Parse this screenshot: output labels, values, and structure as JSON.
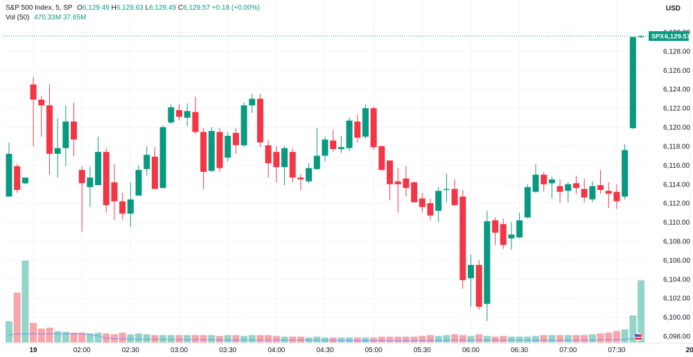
{
  "legend": {
    "symbol": "S&P 500 Index, 5, SP",
    "o_label": "O",
    "o_value": "6,129.49",
    "h_label": "H",
    "h_value": "6,129.63",
    "l_label": "L",
    "l_value": "6,129.49",
    "c_label": "C",
    "c_value": "6,129.57",
    "change": "+0.18 (+0.00%)",
    "vol_label": "Vol (50)",
    "vol_value": "470.33M",
    "vol_ma": "37.65M"
  },
  "currency": "USD",
  "last_price": {
    "symbol": "SPX",
    "value": "6,129.57"
  },
  "colors": {
    "up": "#089981",
    "down": "#f23645",
    "vol_up": "#94d5c9",
    "vol_down": "#f7a6ab",
    "grid": "#f0f3fa",
    "axis_text": "#131722"
  },
  "chart_data": {
    "type": "candlestick",
    "title": "S&P 500 Index, 5, SP",
    "ylim": [
      6096,
      6131
    ],
    "yticks": [
      6098,
      6100,
      6102,
      6104,
      6106,
      6108,
      6110,
      6112,
      6114,
      6116,
      6118,
      6120,
      6122,
      6124,
      6126,
      6128,
      6130
    ],
    "ytick_labels": [
      "6,098.00",
      "6,100.00",
      "6,102.00",
      "6,104.00",
      "6,106.00",
      "6,108.00",
      "6,110.00",
      "6,112.00",
      "6,114.00",
      "6,116.00",
      "6,118.00",
      "6,120.00",
      "6,122.00",
      "6,124.00",
      "6,126.00",
      "6,128.00",
      "6,130.00"
    ],
    "xtick_labels": [
      {
        "bar": 3,
        "label": "19"
      },
      {
        "bar": 9,
        "label": "02:00"
      },
      {
        "bar": 15,
        "label": "02:30"
      },
      {
        "bar": 21,
        "label": "03:00"
      },
      {
        "bar": 27,
        "label": "03:30"
      },
      {
        "bar": 33,
        "label": "04:00"
      },
      {
        "bar": 39,
        "label": "04:30"
      },
      {
        "bar": 45,
        "label": "05:00"
      },
      {
        "bar": 51,
        "label": "05:30"
      },
      {
        "bar": 57,
        "label": "06:00"
      },
      {
        "bar": 63,
        "label": "06:30"
      },
      {
        "bar": 69,
        "label": "07:00"
      },
      {
        "bar": 75,
        "label": "07:30"
      },
      {
        "bar": 84,
        "label": "20"
      }
    ],
    "volume_label": "Vol (50)",
    "series": [
      {
        "o": 6112.7,
        "h": 6118.4,
        "l": 6112.7,
        "c": 6117.2,
        "v": 0.26
      },
      {
        "o": 6115.9,
        "h": 6116.1,
        "l": 6113.1,
        "c": 6113.4,
        "v": 0.61
      },
      {
        "o": 6114.1,
        "h": 6114.7,
        "l": 6114.0,
        "c": 6114.7,
        "v": 1.0
      },
      {
        "o": 6124.5,
        "h": 6125.3,
        "l": 6118.0,
        "c": 6122.9,
        "v": 0.24
      },
      {
        "o": 6122.9,
        "h": 6123.3,
        "l": 6119.0,
        "c": 6122.3,
        "v": 0.17
      },
      {
        "o": 6122.3,
        "h": 6124.5,
        "l": 6115.0,
        "c": 6117.2,
        "v": 0.18
      },
      {
        "o": 6117.2,
        "h": 6120.9,
        "l": 6114.7,
        "c": 6117.8,
        "v": 0.14
      },
      {
        "o": 6117.8,
        "h": 6122.3,
        "l": 6115.9,
        "c": 6120.6,
        "v": 0.13
      },
      {
        "o": 6120.6,
        "h": 6122.6,
        "l": 6117.0,
        "c": 6118.7,
        "v": 0.12
      },
      {
        "o": 6115.5,
        "h": 6115.9,
        "l": 6109.0,
        "c": 6114.1,
        "v": 0.12
      },
      {
        "o": 6113.7,
        "h": 6115.9,
        "l": 6111.6,
        "c": 6114.7,
        "v": 0.11
      },
      {
        "o": 6113.9,
        "h": 6119.0,
        "l": 6113.9,
        "c": 6117.4,
        "v": 0.12
      },
      {
        "o": 6117.4,
        "h": 6117.8,
        "l": 6111.0,
        "c": 6111.8,
        "v": 0.11
      },
      {
        "o": 6114.2,
        "h": 6116.1,
        "l": 6110.2,
        "c": 6112.2,
        "v": 0.1
      },
      {
        "o": 6112.2,
        "h": 6113.1,
        "l": 6110.3,
        "c": 6110.9,
        "v": 0.12
      },
      {
        "o": 6110.9,
        "h": 6114.2,
        "l": 6109.5,
        "c": 6112.4,
        "v": 0.1
      },
      {
        "o": 6112.8,
        "h": 6116.0,
        "l": 6112.8,
        "c": 6115.5,
        "v": 0.11
      },
      {
        "o": 6115.6,
        "h": 6118.0,
        "l": 6114.9,
        "c": 6117.1,
        "v": 0.1
      },
      {
        "o": 6116.9,
        "h": 6117.9,
        "l": 6113.5,
        "c": 6113.5,
        "v": 0.09
      },
      {
        "o": 6113.6,
        "h": 6120.2,
        "l": 6113.6,
        "c": 6120.0,
        "v": 0.09
      },
      {
        "o": 6120.5,
        "h": 6122.4,
        "l": 6120.3,
        "c": 6122.1,
        "v": 0.09
      },
      {
        "o": 6121.8,
        "h": 6122.4,
        "l": 6120.7,
        "c": 6121.1,
        "v": 0.09
      },
      {
        "o": 6121.0,
        "h": 6122.5,
        "l": 6120.1,
        "c": 6121.7,
        "v": 0.09
      },
      {
        "o": 6121.6,
        "h": 6123.2,
        "l": 6119.3,
        "c": 6119.5,
        "v": 0.09
      },
      {
        "o": 6119.5,
        "h": 6119.9,
        "l": 6113.5,
        "c": 6115.3,
        "v": 0.09
      },
      {
        "o": 6115.4,
        "h": 6120.0,
        "l": 6115.3,
        "c": 6119.6,
        "v": 0.09
      },
      {
        "o": 6119.5,
        "h": 6119.9,
        "l": 6115.3,
        "c": 6115.7,
        "v": 0.08
      },
      {
        "o": 6116.8,
        "h": 6119.5,
        "l": 6116.4,
        "c": 6119.1,
        "v": 0.09
      },
      {
        "o": 6119.4,
        "h": 6119.9,
        "l": 6117.2,
        "c": 6118.1,
        "v": 0.09
      },
      {
        "o": 6118.1,
        "h": 6122.6,
        "l": 6117.9,
        "c": 6122.3,
        "v": 0.08
      },
      {
        "o": 6122.3,
        "h": 6123.5,
        "l": 6121.5,
        "c": 6123.0,
        "v": 0.09
      },
      {
        "o": 6123.0,
        "h": 6123.5,
        "l": 6117.9,
        "c": 6118.4,
        "v": 0.09
      },
      {
        "o": 6118.1,
        "h": 6118.7,
        "l": 6114.7,
        "c": 6116.2,
        "v": 0.09
      },
      {
        "o": 6117.4,
        "h": 6118.0,
        "l": 6114.2,
        "c": 6115.8,
        "v": 0.08
      },
      {
        "o": 6115.8,
        "h": 6118.0,
        "l": 6113.9,
        "c": 6117.8,
        "v": 0.07
      },
      {
        "o": 6117.4,
        "h": 6117.8,
        "l": 6114.2,
        "c": 6114.7,
        "v": 0.07
      },
      {
        "o": 6114.7,
        "h": 6115.1,
        "l": 6113.4,
        "c": 6114.5,
        "v": 0.07
      },
      {
        "o": 6114.3,
        "h": 6116.2,
        "l": 6114.1,
        "c": 6115.7,
        "v": 0.06
      },
      {
        "o": 6115.6,
        "h": 6119.9,
        "l": 6115.5,
        "c": 6117.0,
        "v": 0.07
      },
      {
        "o": 6117.0,
        "h": 6119.0,
        "l": 6116.4,
        "c": 6118.7,
        "v": 0.06
      },
      {
        "o": 6118.6,
        "h": 6119.7,
        "l": 6117.4,
        "c": 6117.7,
        "v": 0.06
      },
      {
        "o": 6117.7,
        "h": 6119.1,
        "l": 6117.3,
        "c": 6117.9,
        "v": 0.06
      },
      {
        "o": 6117.8,
        "h": 6121.0,
        "l": 6117.5,
        "c": 6120.7,
        "v": 0.06
      },
      {
        "o": 6120.6,
        "h": 6121.3,
        "l": 6118.4,
        "c": 6118.9,
        "v": 0.06
      },
      {
        "o": 6119.0,
        "h": 6122.4,
        "l": 6118.8,
        "c": 6122.0,
        "v": 0.06
      },
      {
        "o": 6122.0,
        "h": 6122.2,
        "l": 6117.6,
        "c": 6117.9,
        "v": 0.06
      },
      {
        "o": 6118.0,
        "h": 6118.1,
        "l": 6115.4,
        "c": 6115.5,
        "v": 0.07
      },
      {
        "o": 6116.5,
        "h": 6116.5,
        "l": 6112.3,
        "c": 6114.0,
        "v": 0.07
      },
      {
        "o": 6114.3,
        "h": 6115.7,
        "l": 6111.0,
        "c": 6114.0,
        "v": 0.07
      },
      {
        "o": 6114.6,
        "h": 6115.9,
        "l": 6112.7,
        "c": 6113.6,
        "v": 0.07
      },
      {
        "o": 6114.2,
        "h": 6114.3,
        "l": 6112.1,
        "c": 6112.1,
        "v": 0.07
      },
      {
        "o": 6112.5,
        "h": 6113.1,
        "l": 6111.0,
        "c": 6111.6,
        "v": 0.08
      },
      {
        "o": 6112.0,
        "h": 6112.5,
        "l": 6110.2,
        "c": 6110.7,
        "v": 0.09
      },
      {
        "o": 6111.2,
        "h": 6113.7,
        "l": 6110.0,
        "c": 6113.3,
        "v": 0.08
      },
      {
        "o": 6113.4,
        "h": 6115.1,
        "l": 6112.1,
        "c": 6113.5,
        "v": 0.09
      },
      {
        "o": 6113.5,
        "h": 6114.5,
        "l": 6111.7,
        "c": 6111.8,
        "v": 0.1
      },
      {
        "o": 6112.7,
        "h": 6113.4,
        "l": 6103.0,
        "c": 6103.9,
        "v": 0.09
      },
      {
        "o": 6104.1,
        "h": 6106.6,
        "l": 6101.1,
        "c": 6105.5,
        "v": 0.08
      },
      {
        "o": 6105.5,
        "h": 6106.0,
        "l": 6100.8,
        "c": 6101.1,
        "v": 0.1
      },
      {
        "o": 6101.4,
        "h": 6111.2,
        "l": 6099.6,
        "c": 6110.1,
        "v": 0.08
      },
      {
        "o": 6110.2,
        "h": 6110.5,
        "l": 6107.6,
        "c": 6108.9,
        "v": 0.07
      },
      {
        "o": 6109.8,
        "h": 6110.4,
        "l": 6107.2,
        "c": 6107.6,
        "v": 0.08
      },
      {
        "o": 6108.3,
        "h": 6110.0,
        "l": 6107.1,
        "c": 6108.7,
        "v": 0.07
      },
      {
        "o": 6108.4,
        "h": 6111.0,
        "l": 6108.3,
        "c": 6110.2,
        "v": 0.07
      },
      {
        "o": 6110.5,
        "h": 6114.0,
        "l": 6110.4,
        "c": 6113.7,
        "v": 0.07
      },
      {
        "o": 6113.2,
        "h": 6116.1,
        "l": 6113.1,
        "c": 6115.0,
        "v": 0.08
      },
      {
        "o": 6115.0,
        "h": 6115.3,
        "l": 6113.2,
        "c": 6114.0,
        "v": 0.09
      },
      {
        "o": 6114.1,
        "h": 6114.8,
        "l": 6112.5,
        "c": 6114.5,
        "v": 0.09
      },
      {
        "o": 6113.8,
        "h": 6114.5,
        "l": 6112.0,
        "c": 6113.2,
        "v": 0.09
      },
      {
        "o": 6113.3,
        "h": 6114.2,
        "l": 6112.1,
        "c": 6114.0,
        "v": 0.09
      },
      {
        "o": 6114.1,
        "h": 6114.9,
        "l": 6113.0,
        "c": 6113.6,
        "v": 0.09
      },
      {
        "o": 6113.5,
        "h": 6114.6,
        "l": 6112.1,
        "c": 6112.6,
        "v": 0.09
      },
      {
        "o": 6112.4,
        "h": 6114.3,
        "l": 6112.1,
        "c": 6113.8,
        "v": 0.1
      },
      {
        "o": 6113.9,
        "h": 6115.5,
        "l": 6113.0,
        "c": 6113.4,
        "v": 0.11
      },
      {
        "o": 6113.3,
        "h": 6114.2,
        "l": 6111.5,
        "c": 6113.0,
        "v": 0.12
      },
      {
        "o": 6113.2,
        "h": 6114.0,
        "l": 6111.4,
        "c": 6112.2,
        "v": 0.14
      },
      {
        "o": 6112.7,
        "h": 6118.2,
        "l": 6112.4,
        "c": 6117.6,
        "v": 0.16
      },
      {
        "o": 6119.9,
        "h": 6129.5,
        "l": 6119.8,
        "c": 6129.5,
        "v": 0.33
      },
      {
        "o": 6129.5,
        "h": 6129.7,
        "l": 6129.4,
        "c": 6129.6,
        "v": 0.76
      }
    ]
  }
}
